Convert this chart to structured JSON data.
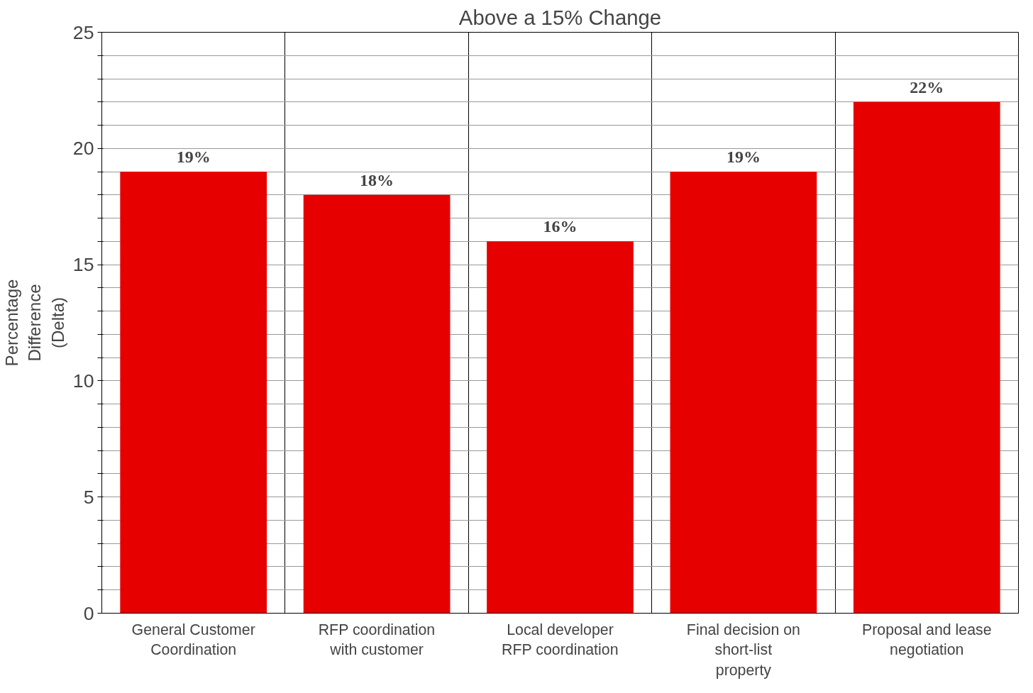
{
  "chart_data": {
    "type": "bar",
    "title": "Above a 15% Change",
    "ylabel": "Percentage Difference (Delta)",
    "categories": [
      "General Customer Coordination",
      "RFP coordination with customer",
      "Local developer RFP coordination",
      "Final decision on short-list property",
      "Proposal and lease negotiation"
    ],
    "values": [
      19,
      18,
      16,
      19,
      22
    ],
    "value_labels": [
      "19%",
      "18%",
      "16%",
      "19%",
      "22%"
    ],
    "color": "#e60000",
    "ylim": [
      0,
      25
    ],
    "yticks": [
      0,
      {
        "value": 1,
        "label": null
      },
      {
        "value": 2,
        "label": null
      },
      {
        "value": 3,
        "label": null
      },
      {
        "value": 4,
        "label": null
      },
      5,
      {
        "value": 6,
        "label": null
      },
      {
        "value": 7,
        "label": null
      },
      {
        "value": 8,
        "label": null
      },
      {
        "value": 9,
        "label": null
      },
      10,
      {
        "value": 11,
        "label": null
      },
      {
        "value": 12,
        "label": null
      },
      {
        "value": 13,
        "label": null
      },
      {
        "value": 14,
        "label": null
      },
      15,
      {
        "value": 16,
        "label": null
      },
      {
        "value": 17,
        "label": null
      },
      {
        "value": 18,
        "label": null
      },
      {
        "value": 19,
        "label": null
      },
      20,
      {
        "value": 21,
        "label": null
      },
      {
        "value": 22,
        "label": null
      },
      {
        "value": 23,
        "label": null
      },
      {
        "value": 24,
        "label": null
      },
      25
    ],
    "grid": true
  }
}
